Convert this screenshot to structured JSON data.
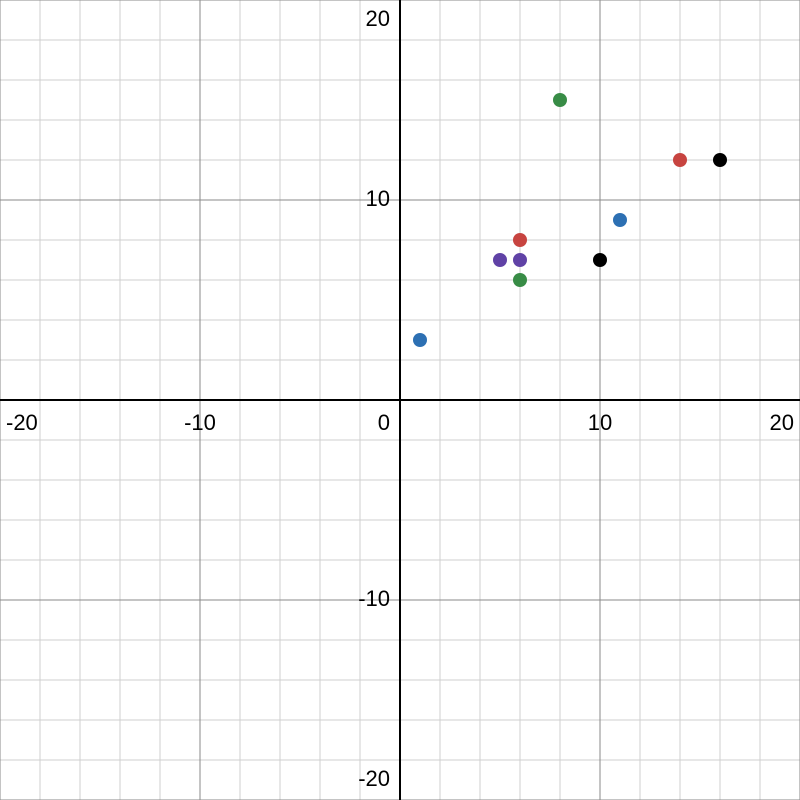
{
  "chart_data": {
    "type": "scatter",
    "xlim": [
      -20,
      20
    ],
    "ylim": [
      -20,
      20
    ],
    "xticks": [
      -20,
      -10,
      0,
      10,
      20
    ],
    "yticks": [
      -20,
      -10,
      10,
      20
    ],
    "grid": true,
    "minor_grid": 2,
    "series": [
      {
        "color": "#2d70b3",
        "x": [
          1,
          11
        ],
        "values": [
          3,
          9
        ]
      },
      {
        "color": "#c74440",
        "x": [
          6,
          14
        ],
        "values": [
          8,
          12
        ]
      },
      {
        "color": "#388c46",
        "x": [
          6,
          8
        ],
        "values": [
          6,
          15
        ]
      },
      {
        "color": "#6042a6",
        "x": [
          5,
          6
        ],
        "values": [
          7,
          7
        ]
      },
      {
        "color": "#000000",
        "x": [
          10,
          16
        ],
        "values": [
          7,
          12
        ]
      }
    ]
  }
}
